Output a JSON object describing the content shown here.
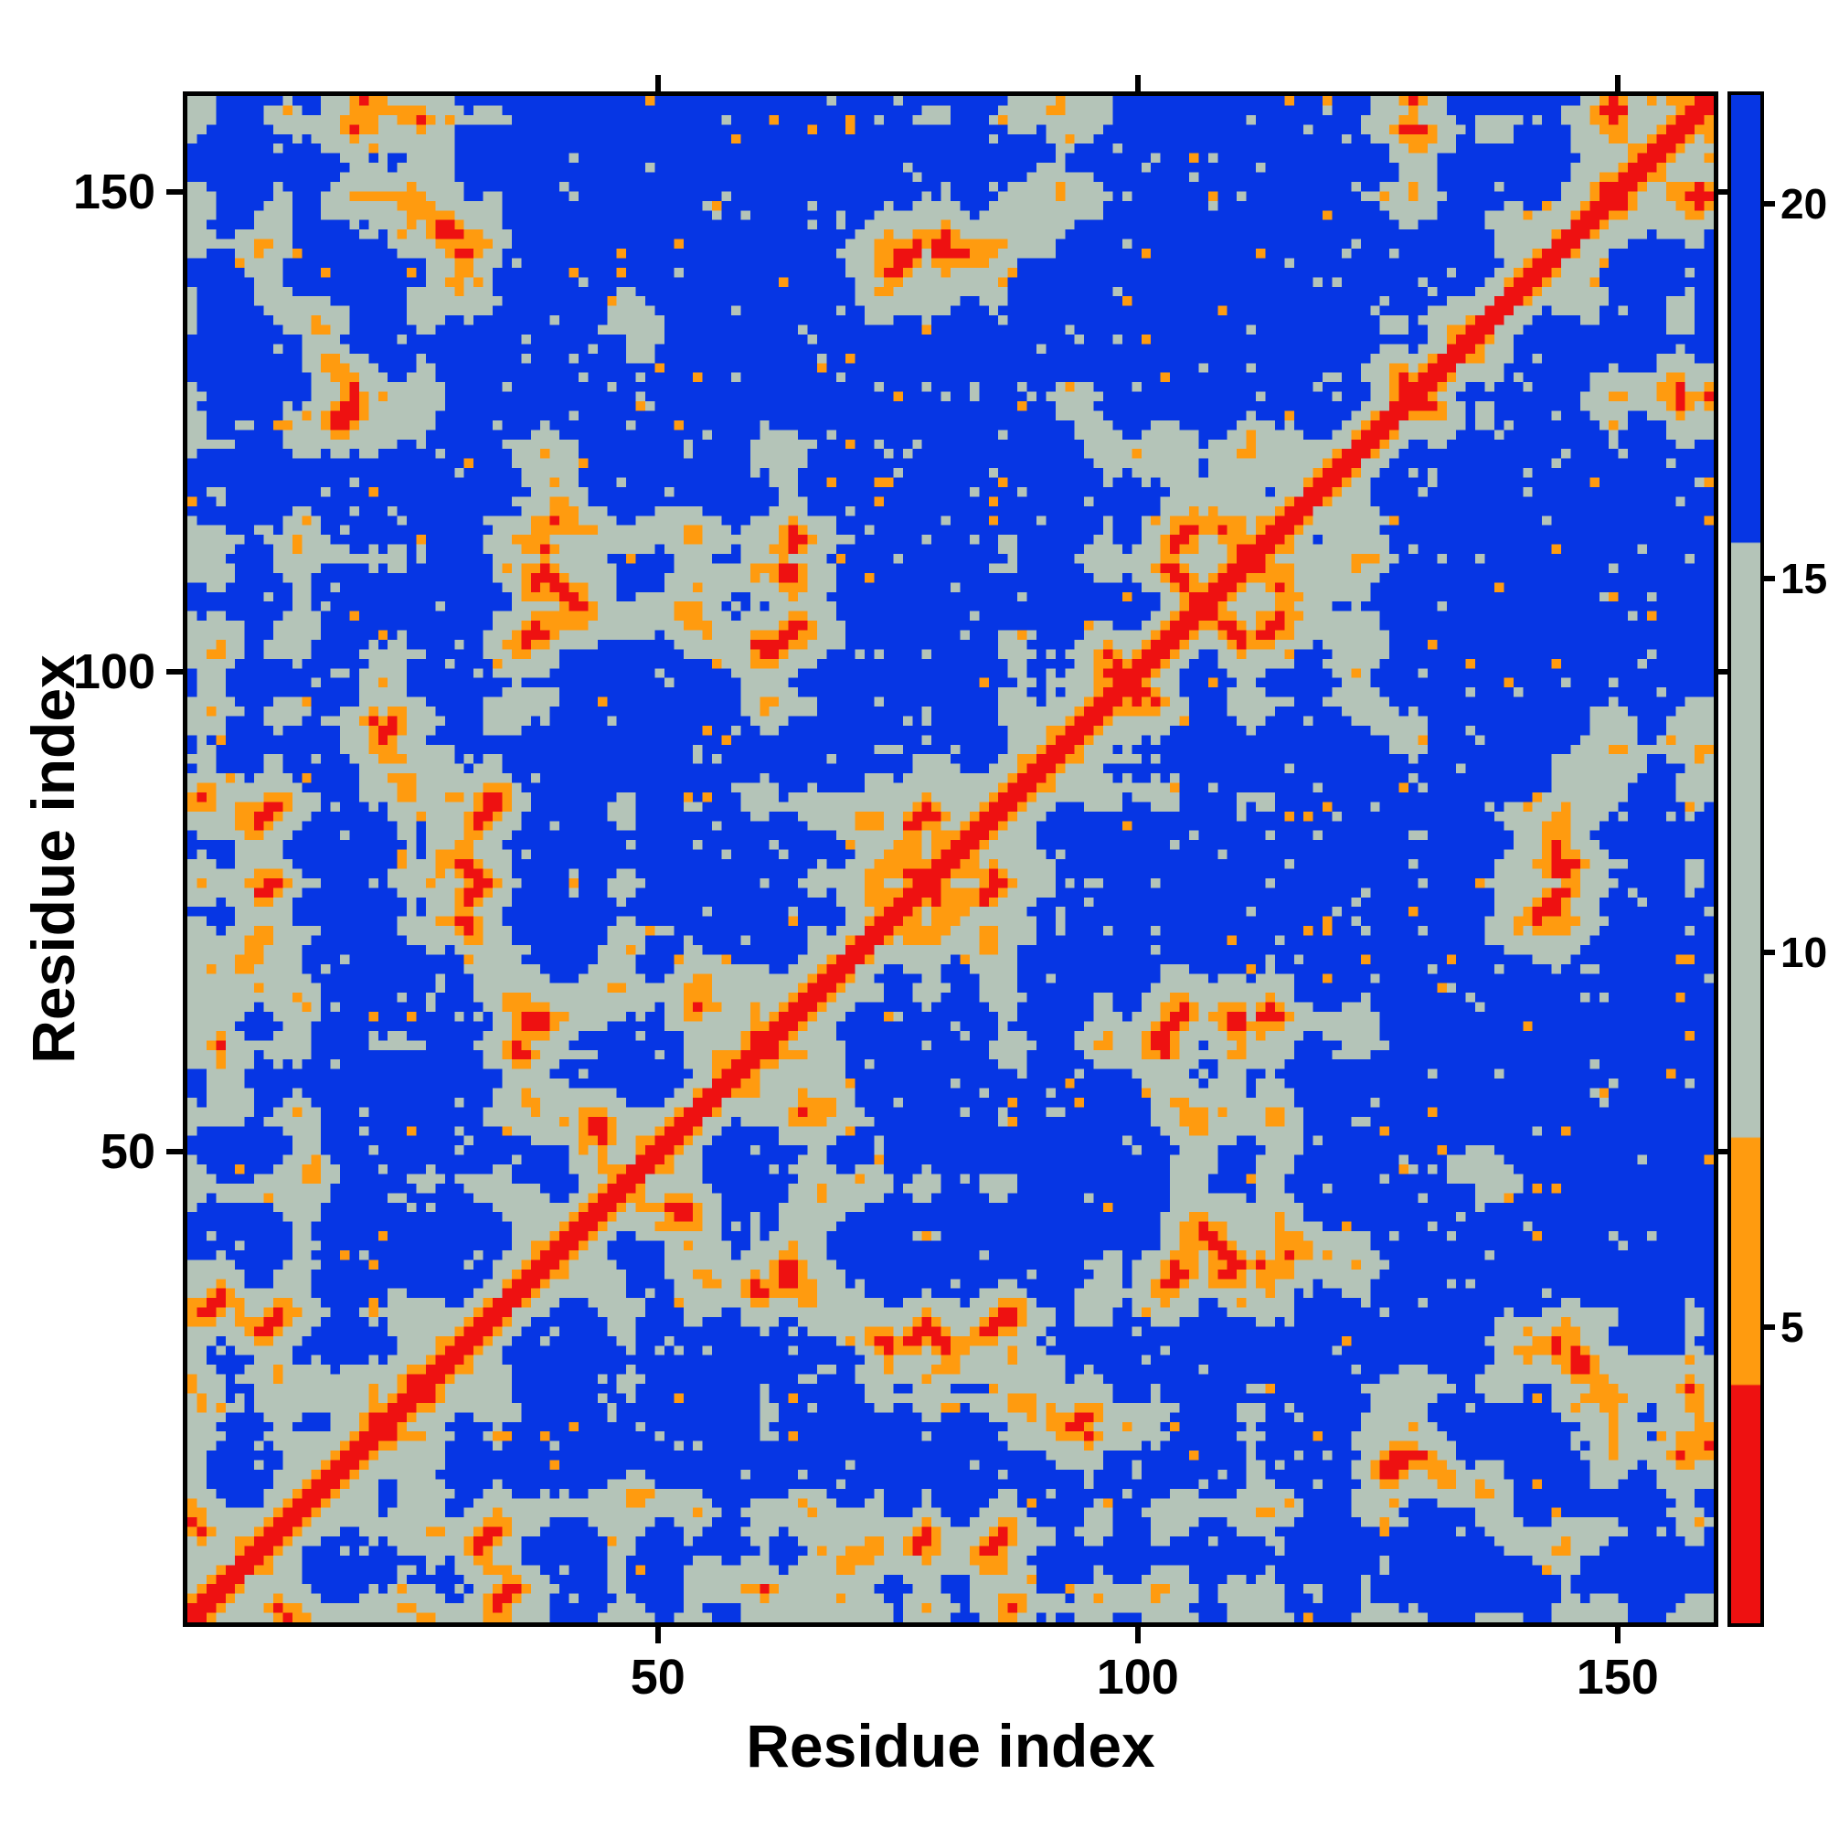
{
  "page": {
    "background": "#ffffff"
  },
  "chart_data": {
    "type": "heatmap",
    "title": "",
    "xlabel": "Residue index",
    "ylabel": "Residue index",
    "x_ticks": [
      50,
      100,
      150
    ],
    "y_ticks": [
      50,
      100,
      150
    ],
    "axis_min": 1,
    "axis_max": 160,
    "n_residues": 160,
    "grid": false,
    "legend": "none",
    "colorbar": {
      "position": "right",
      "ticks": [
        5,
        10,
        15,
        20
      ],
      "vmin": 1,
      "vmax": 21.5
    },
    "colormap": [
      {
        "band": "0-4.2",
        "max": 4.2,
        "color": "#ee1111"
      },
      {
        "band": "4.2-7.5",
        "max": 7.5,
        "color": "#ff9b0f"
      },
      {
        "band": "7.5-15.5",
        "max": 15.5,
        "color": "#b4c4b8"
      },
      {
        "band": ">15.5",
        "max": 1000000000.0,
        "color": "#0636e4"
      }
    ],
    "matrix_model": {
      "kind": "symmetric-residue-distance-matrix",
      "seed": 20240613,
      "step_length": 3.8,
      "persistence": 0.72,
      "noise": 0.75,
      "turn_min": 10,
      "turn_span": 16,
      "confinement_radius": 20,
      "centering_strength": 0.6,
      "orange_speckles": 150,
      "pale_speckles": 420
    }
  }
}
